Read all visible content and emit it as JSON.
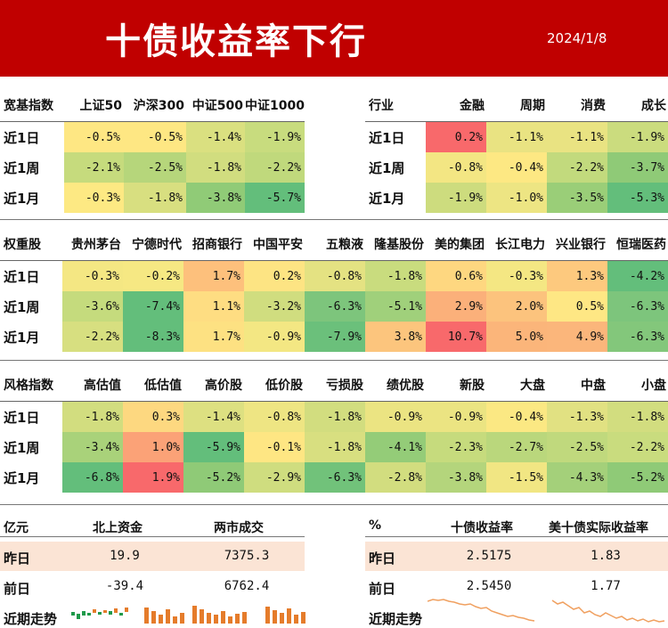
{
  "header": {
    "title": "十债收益率下行",
    "date": "2024/1/8"
  },
  "broad_index": {
    "cols": [
      "宽基指数",
      "上证50",
      "沪深300",
      "中证500",
      "中证1000"
    ],
    "rows": [
      {
        "label": "近1日",
        "values": [
          "-0.5%",
          "-0.5%",
          "-1.4%",
          "-1.9%"
        ],
        "colors": [
          "#fee783",
          "#fee783",
          "#dae080",
          "#c8dc7e"
        ]
      },
      {
        "label": "近1周",
        "values": [
          "-2.1%",
          "-2.5%",
          "-1.8%",
          "-2.2%"
        ],
        "colors": [
          "#c6db7d",
          "#b6d67b",
          "#d1dd7f",
          "#c0d97c"
        ]
      },
      {
        "label": "近1月",
        "values": [
          "-0.3%",
          "-1.8%",
          "-3.8%",
          "-5.7%"
        ],
        "colors": [
          "#fde983",
          "#d8df80",
          "#90cb77",
          "#63be7b"
        ]
      }
    ]
  },
  "sector": {
    "cols": [
      "行业",
      "金融",
      "周期",
      "消费",
      "成长"
    ],
    "rows": [
      {
        "label": "近1日",
        "values": [
          "0.2%",
          "-1.1%",
          "-1.1%",
          "-1.9%"
        ],
        "colors": [
          "#f8696b",
          "#e9e382",
          "#e9e382",
          "#cbdc7e"
        ]
      },
      {
        "label": "近1周",
        "values": [
          "-0.8%",
          "-0.4%",
          "-2.2%",
          "-3.7%"
        ],
        "colors": [
          "#f3e683",
          "#fde883",
          "#c2da7d",
          "#8fca77"
        ]
      },
      {
        "label": "近1月",
        "values": [
          "-1.9%",
          "-1.0%",
          "-3.5%",
          "-5.3%"
        ],
        "colors": [
          "#cddc7e",
          "#ede583",
          "#9ace78",
          "#63be7b"
        ]
      }
    ]
  },
  "heavyweights": {
    "cols": [
      "权重股",
      "贵州茅台",
      "宁德时代",
      "招商银行",
      "中国平安",
      "五粮液",
      "隆基股份",
      "美的集团",
      "长江电力",
      "兴业银行",
      "恒瑞医药"
    ],
    "rows": [
      {
        "label": "近1日",
        "values": [
          "-0.3%",
          "-0.2%",
          "1.7%",
          "0.2%",
          "-0.8%",
          "-1.8%",
          "0.6%",
          "-0.3%",
          "1.3%",
          "-4.2%"
        ],
        "colors": [
          "#f4e783",
          "#f6e883",
          "#fdc07c",
          "#fde483",
          "#e4e282",
          "#c9dc7e",
          "#fed780",
          "#f4e783",
          "#fdc97e",
          "#63be7b"
        ]
      },
      {
        "label": "近1周",
        "values": [
          "-3.6%",
          "-7.4%",
          "1.1%",
          "-3.2%",
          "-6.3%",
          "-5.1%",
          "2.9%",
          "2.0%",
          "0.5%",
          "-6.3%"
        ],
        "colors": [
          "#c5db7d",
          "#63be7b",
          "#fedd82",
          "#d0dd7f",
          "#7dc57c",
          "#a0d07b",
          "#fbb07a",
          "#fcc37d",
          "#fee784",
          "#7dc57c"
        ]
      },
      {
        "label": "近1月",
        "values": [
          "-2.2%",
          "-8.3%",
          "1.7%",
          "-0.9%",
          "-7.9%",
          "3.8%",
          "10.7%",
          "5.0%",
          "4.9%",
          "-6.3%"
        ],
        "colors": [
          "#d7df80",
          "#63be7b",
          "#fde182",
          "#f3e783",
          "#6bc07b",
          "#fcc57d",
          "#f8696b",
          "#fbb57a",
          "#fbb67b",
          "#83c77b"
        ]
      }
    ]
  },
  "style_index": {
    "cols": [
      "风格指数",
      "高估值",
      "低估值",
      "高价股",
      "低价股",
      "亏损股",
      "绩优股",
      "新股",
      "大盘",
      "中盘",
      "小盘"
    ],
    "rows": [
      {
        "label": "近1日",
        "values": [
          "-1.8%",
          "0.3%",
          "-1.4%",
          "-0.8%",
          "-1.8%",
          "-0.9%",
          "-0.9%",
          "-0.4%",
          "-1.3%",
          "-1.8%"
        ],
        "colors": [
          "#d2dd7f",
          "#fdd880",
          "#dde081",
          "#eee583",
          "#d2dd7f",
          "#ebe482",
          "#ebe482",
          "#fbe883",
          "#e1e182",
          "#d2dd7f"
        ]
      },
      {
        "label": "近1周",
        "values": [
          "-3.4%",
          "1.0%",
          "-5.9%",
          "-0.1%",
          "-1.8%",
          "-4.1%",
          "-2.3%",
          "-2.7%",
          "-2.5%",
          "-2.2%"
        ],
        "colors": [
          "#a9d27a",
          "#fba277",
          "#63be7b",
          "#fee683",
          "#d8df80",
          "#94cc78",
          "#c6db7d",
          "#bad77c",
          "#c0d97d",
          "#c9dc7e"
        ]
      },
      {
        "label": "近1月",
        "values": [
          "-6.8%",
          "1.9%",
          "-5.2%",
          "-2.9%",
          "-6.3%",
          "-2.8%",
          "-3.8%",
          "-1.5%",
          "-4.3%",
          "-5.2%"
        ],
        "colors": [
          "#63be7b",
          "#f8696b",
          "#8fca77",
          "#cfdd7f",
          "#71c27a",
          "#d2dd7f",
          "#b4d57c",
          "#f1e683",
          "#a4d07a",
          "#8fca77"
        ]
      }
    ]
  },
  "flows": {
    "unit": "亿元",
    "col1": "北上资金",
    "col2": "两市成交",
    "rows": [
      {
        "label": "昨日",
        "v1": "19.9",
        "v2": "7375.3"
      },
      {
        "label": "前日",
        "v1": "-39.4",
        "v2": "6762.4"
      },
      {
        "label": "近期走势"
      }
    ],
    "colors": {
      "pos_bar": "#e57c2b",
      "neg_bar": "#1f9a4a",
      "row_highlight": "#fbe4d5"
    }
  },
  "yields": {
    "unit": "%",
    "col1": "十债收益率",
    "col2": "美十债实际收益率",
    "rows": [
      {
        "label": "昨日",
        "v1": "2.5175",
        "v2": "1.83"
      },
      {
        "label": "前日",
        "v1": "2.5450",
        "v2": "1.77"
      },
      {
        "label": "近期走势"
      }
    ],
    "colors": {
      "trend_line": "#f0a060"
    }
  }
}
